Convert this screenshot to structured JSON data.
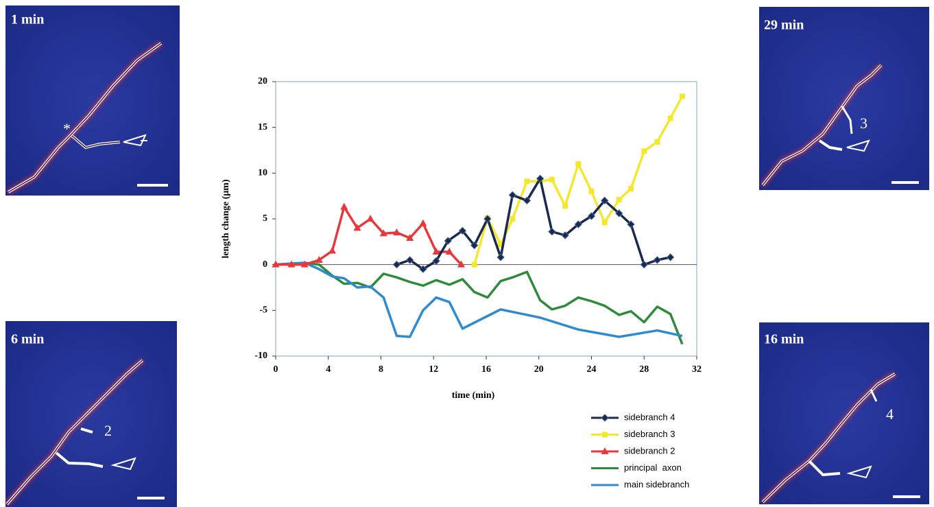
{
  "panels": [
    {
      "label": "1 min",
      "annotation": "*"
    },
    {
      "label": "6 min",
      "annotation": "2"
    },
    {
      "label": "29 min",
      "annotation": "3"
    },
    {
      "label": "16 min",
      "annotation": "4"
    }
  ],
  "chart_data": {
    "type": "line",
    "xlabel": "time (min)",
    "ylabel": "length change (μm)",
    "xlim": [
      0,
      32
    ],
    "xticks": [
      0,
      4,
      8,
      12,
      16,
      20,
      24,
      28,
      32
    ],
    "ylim": [
      -10,
      20
    ],
    "yticks": [
      -10,
      -5,
      0,
      5,
      10,
      15,
      20
    ],
    "zero_line": true,
    "series": [
      {
        "name": "sidebranch 4",
        "color": "#1a2a4f",
        "marker": "diamond",
        "x": [
          9.2,
          10.2,
          11.2,
          12.2,
          13.1,
          14.2,
          15.1,
          16.1,
          17.1,
          18.0,
          19.1,
          20.1,
          21.0,
          22.0,
          23.0,
          24.0,
          25.0,
          26.1,
          27.0,
          28.0,
          29.0,
          30.0
        ],
        "values": [
          0,
          0.5,
          -0.5,
          0.4,
          2.6,
          3.7,
          2.1,
          5.0,
          0.8,
          7.6,
          7.0,
          9.4,
          3.6,
          3.2,
          4.4,
          5.3,
          7.0,
          5.6,
          4.4,
          0,
          0.5,
          0.8
        ]
      },
      {
        "name": "sidebranch 3",
        "color": "#f5e82c",
        "marker": "square",
        "x": [
          15.1,
          16.1,
          17.1,
          18.0,
          19.1,
          20.1,
          21.0,
          22.0,
          23.0,
          24.0,
          25.0,
          26.1,
          27.0,
          28.0,
          29.0,
          30.0,
          30.9
        ],
        "values": [
          0,
          5.1,
          2.2,
          5.0,
          9.1,
          9.1,
          9.3,
          6.4,
          11.0,
          8.0,
          4.6,
          7.1,
          8.3,
          12.4,
          13.4,
          16.0,
          18.4
        ]
      },
      {
        "name": "sidebranch 2",
        "color": "#e8383a",
        "marker": "triangle",
        "x": [
          0,
          1.2,
          2.2,
          3.3,
          4.3,
          5.2,
          6.2,
          7.2,
          8.2,
          9.2,
          10.2,
          11.2,
          12.2,
          13.2,
          14.1
        ],
        "values": [
          0,
          0,
          0,
          0.5,
          1.5,
          6.3,
          4.0,
          5.0,
          3.4,
          3.5,
          2.9,
          4.5,
          1.4,
          1.4,
          0
        ]
      },
      {
        "name": "principal  axon",
        "color": "#2e8b3a",
        "marker": "none",
        "x": [
          0,
          2.2,
          3.3,
          4.3,
          5.2,
          6.2,
          7.2,
          8.2,
          9.2,
          10.2,
          11.2,
          12.2,
          13.2,
          14.2,
          15.1,
          16.1,
          17.1,
          18.0,
          19.1,
          20.1,
          21.0,
          22.0,
          23.0,
          24.0,
          25.0,
          26.1,
          27.0,
          28.0,
          29.0,
          30.0,
          30.9
        ],
        "values": [
          0,
          0.2,
          0,
          -1.2,
          -2.1,
          -2.0,
          -2.5,
          -1.0,
          -1.4,
          -1.9,
          -2.3,
          -1.7,
          -2.2,
          -1.6,
          -3.0,
          -3.6,
          -1.8,
          -1.4,
          -0.8,
          -3.9,
          -4.9,
          -4.5,
          -3.6,
          -4.0,
          -4.5,
          -5.5,
          -5.1,
          -6.3,
          -4.6,
          -5.4,
          -8.7
        ]
      },
      {
        "name": "main sidebranch",
        "color": "#2f8bd0",
        "marker": "none",
        "x": [
          0,
          2.2,
          3.3,
          4.3,
          5.2,
          6.2,
          7.2,
          8.2,
          9.2,
          10.2,
          11.2,
          12.2,
          13.2,
          14.2,
          17.1,
          20.1,
          23.0,
          26.1,
          29.0,
          30.9
        ],
        "values": [
          0,
          0.2,
          -0.5,
          -1.3,
          -1.5,
          -2.5,
          -2.4,
          -3.6,
          -7.8,
          -7.9,
          -5.0,
          -3.6,
          -4.1,
          -7.0,
          -4.9,
          -5.8,
          -7.1,
          -7.9,
          -7.2,
          -7.8
        ]
      }
    ]
  }
}
